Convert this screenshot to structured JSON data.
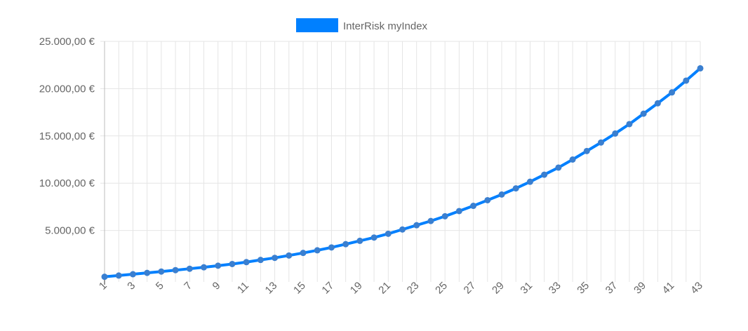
{
  "chart_data": {
    "type": "line",
    "legend": {
      "position": "top-center"
    },
    "grid": true,
    "x": [
      1,
      2,
      3,
      4,
      5,
      6,
      7,
      8,
      9,
      10,
      11,
      12,
      13,
      14,
      15,
      16,
      17,
      18,
      19,
      20,
      21,
      22,
      23,
      24,
      25,
      26,
      27,
      28,
      29,
      30,
      31,
      32,
      33,
      34,
      35,
      36,
      37,
      38,
      39,
      40,
      41,
      42,
      43
    ],
    "x_tick_labels": [
      "1",
      "3",
      "5",
      "7",
      "9",
      "11",
      "13",
      "15",
      "17",
      "19",
      "21",
      "23",
      "25",
      "27",
      "29",
      "31",
      "33",
      "35",
      "37",
      "39",
      "41",
      "43"
    ],
    "y_tick_labels": [
      "5.000,00 €",
      "10.000,00 €",
      "15.000,00 €",
      "20.000,00 €",
      "25.000,00 €"
    ],
    "y_ticks": [
      5000,
      10000,
      15000,
      20000,
      25000
    ],
    "ylim": [
      0,
      25000
    ],
    "series": [
      {
        "name": "InterRisk myIndex",
        "color": "#0080ff",
        "marker_color": "#3a7fd0",
        "values": [
          100,
          230,
          370,
          510,
          650,
          800,
          950,
          1100,
          1270,
          1450,
          1650,
          1880,
          2100,
          2350,
          2620,
          2900,
          3200,
          3550,
          3900,
          4250,
          4650,
          5100,
          5550,
          6000,
          6500,
          7050,
          7600,
          8200,
          8800,
          9450,
          10150,
          10900,
          11650,
          12500,
          13400,
          14300,
          15250,
          16250,
          17350,
          18450,
          19600,
          20850,
          22150
        ]
      }
    ]
  }
}
